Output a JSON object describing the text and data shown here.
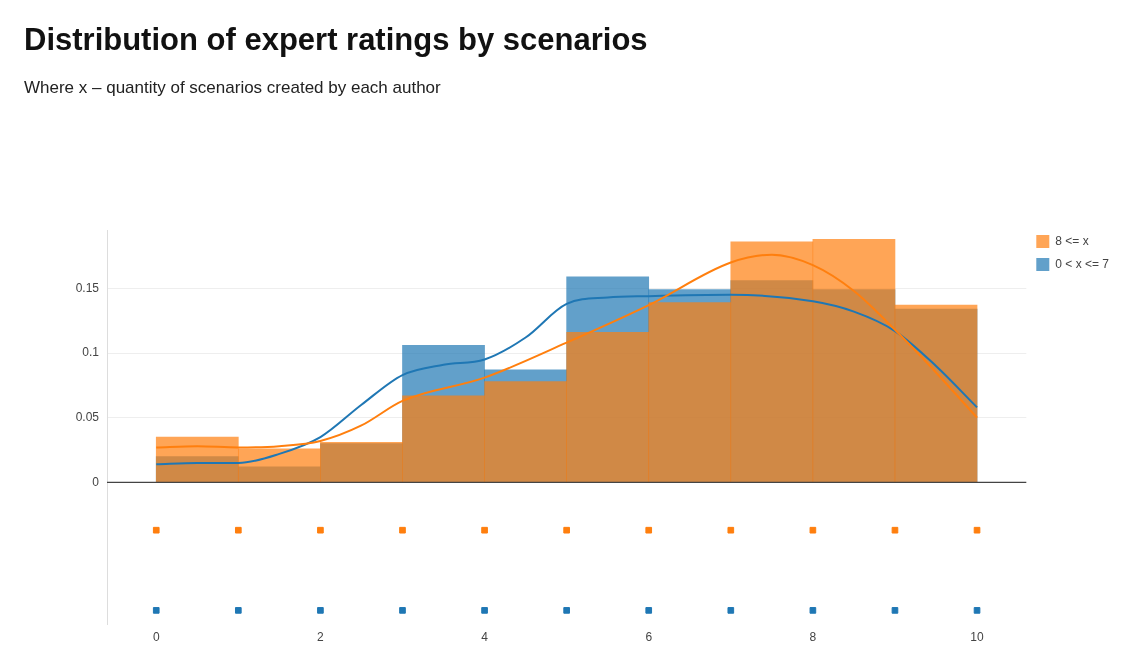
{
  "chart_data": {
    "type": "histogram",
    "title": "Distribution of expert ratings by scenarios",
    "subtitle": "Where x – quantity of scenarios created by each author",
    "bins": [
      0,
      1,
      2,
      3,
      4,
      5,
      6,
      7,
      8,
      9,
      10
    ],
    "series": [
      {
        "name": "8 <= x",
        "color": "#ff7f0e",
        "values": [
          0.035,
          0.026,
          0.031,
          0.067,
          0.078,
          0.116,
          0.139,
          0.186,
          0.188,
          0.137
        ]
      },
      {
        "name": "0 < x <= 7",
        "color": "#1f77b4",
        "values": [
          0.02,
          0.012,
          0.03,
          0.106,
          0.087,
          0.159,
          0.149,
          0.156,
          0.149,
          0.134
        ]
      },
      {
        "type": "line",
        "color": "#ff7f0e",
        "x": [
          0,
          0.5,
          1,
          1.5,
          2,
          2.5,
          3,
          4,
          5,
          6,
          7,
          7.5,
          8,
          8.5,
          9,
          9.5,
          10
        ],
        "values": [
          0.027,
          0.028,
          0.027,
          0.028,
          0.032,
          0.044,
          0.063,
          0.081,
          0.108,
          0.137,
          0.17,
          0.176,
          0.168,
          0.148,
          0.118,
          0.085,
          0.05
        ]
      },
      {
        "type": "line",
        "color": "#1f77b4",
        "x": [
          0,
          0.5,
          1,
          1.5,
          2,
          2.5,
          3,
          3.5,
          4,
          4.5,
          5,
          5.5,
          6,
          7,
          8,
          8.5,
          9,
          9.5,
          10
        ],
        "values": [
          0.014,
          0.015,
          0.015,
          0.022,
          0.035,
          0.06,
          0.083,
          0.091,
          0.095,
          0.112,
          0.138,
          0.143,
          0.144,
          0.145,
          0.14,
          0.132,
          0.117,
          0.09,
          0.058
        ]
      },
      {
        "type": "scatter",
        "marker": "square",
        "color": "#ff7f0e",
        "x": [
          0,
          1,
          2,
          3,
          4,
          5,
          6,
          7,
          8,
          9,
          10
        ],
        "values": [
          -0.037,
          -0.037,
          -0.037,
          -0.037,
          -0.037,
          -0.037,
          -0.037,
          -0.037,
          -0.037,
          -0.037,
          -0.037
        ]
      },
      {
        "type": "scatter",
        "marker": "square",
        "color": "#1f77b4",
        "x": [
          0,
          1,
          2,
          3,
          4,
          5,
          6,
          7,
          8,
          9,
          10
        ],
        "values": [
          -0.099,
          -0.099,
          -0.099,
          -0.099,
          -0.099,
          -0.099,
          -0.099,
          -0.099,
          -0.099,
          -0.099,
          -0.099
        ]
      }
    ],
    "xlim": [
      -0.6,
      10.6
    ],
    "xticks": [
      0,
      2,
      4,
      6,
      8,
      10
    ],
    "ylim": [
      -0.11,
      0.195
    ],
    "yticks": [
      0,
      0.05,
      0.1,
      0.15
    ],
    "grid": "y",
    "legend": "top right"
  }
}
